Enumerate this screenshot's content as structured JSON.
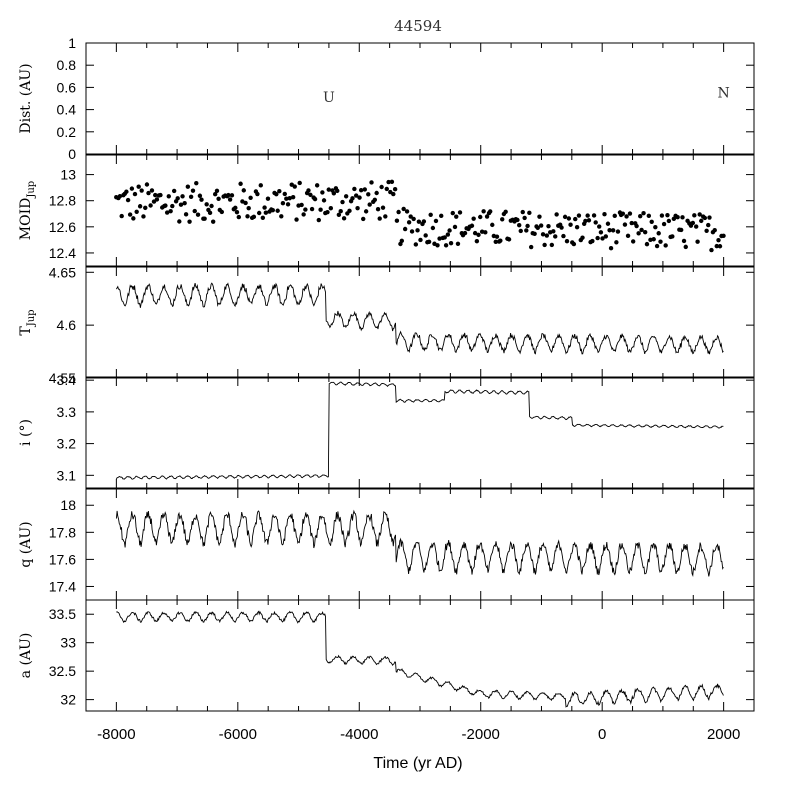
{
  "chart_data": {
    "type": "line",
    "title": "44594",
    "xlabel": "Time (yr AD)",
    "x_ticks": [
      -8000,
      -6000,
      -4000,
      -2000,
      0,
      2000
    ],
    "xlim": [
      -8500,
      2500
    ],
    "panels": [
      {
        "id": "dist",
        "ylabel": "Dist. (AU)",
        "ylim": [
          0,
          1
        ],
        "y_ticks": [
          0,
          0.2,
          0.4,
          0.6,
          0.8,
          1
        ],
        "y_tick_labels": [
          "0",
          "0.2",
          "0.4",
          "0.6",
          "0.8",
          "1"
        ],
        "kind": "markers",
        "markers": [
          {
            "label": "U",
            "x": -4500,
            "y": 0.47
          },
          {
            "label": "N",
            "x": 2000,
            "y": 0.51
          }
        ]
      },
      {
        "id": "moid",
        "ylabel": "MOID",
        "ylabel_sub": "Jup",
        "ylim": [
          12.3,
          13.15
        ],
        "y_ticks": [
          12.4,
          12.6,
          12.8,
          13
        ],
        "y_tick_labels": [
          "12.4",
          "12.6",
          "12.8",
          "13"
        ],
        "kind": "scatter",
        "x_range": [
          -8000,
          2000
        ],
        "segments": [
          {
            "from": -8000,
            "to": -3400,
            "y_start": 12.78,
            "y_end": 12.8,
            "amp": 0.15
          },
          {
            "from": -3400,
            "to": 2000,
            "y_start": 12.6,
            "y_end": 12.56,
            "amp": 0.14
          }
        ]
      },
      {
        "id": "tjup",
        "ylabel": "T",
        "ylabel_sub": "Jup",
        "ylim": [
          4.55,
          4.655
        ],
        "y_ticks": [
          4.55,
          4.6,
          4.65
        ],
        "y_tick_labels": [
          "4.55",
          "4.6",
          "4.65"
        ],
        "kind": "line",
        "x_range": [
          -8000,
          2000
        ],
        "period": 260,
        "segments": [
          {
            "from": -8000,
            "to": -4550,
            "y_start": 4.628,
            "y_end": 4.628,
            "amp": 0.012
          },
          {
            "from": -4550,
            "to": -3400,
            "y_start": 4.605,
            "y_end": 4.603,
            "amp": 0.009
          },
          {
            "from": -3400,
            "to": 2000,
            "y_start": 4.584,
            "y_end": 4.581,
            "amp": 0.01
          }
        ]
      },
      {
        "id": "incl",
        "ylabel": "i (°)",
        "ylim": [
          3.06,
          3.41
        ],
        "y_ticks": [
          3.1,
          3.2,
          3.3,
          3.4
        ],
        "y_tick_labels": [
          "3.1",
          "3.2",
          "3.3",
          "3.4"
        ],
        "kind": "line",
        "x_range": [
          -8000,
          2000
        ],
        "period": 140,
        "segments": [
          {
            "from": -8000,
            "to": -4500,
            "y_start": 3.092,
            "y_end": 3.098,
            "amp": 0.005
          },
          {
            "from": -4500,
            "to": -3400,
            "y_start": 3.39,
            "y_end": 3.385,
            "amp": 0.005
          },
          {
            "from": -3400,
            "to": -2600,
            "y_start": 3.335,
            "y_end": 3.335,
            "amp": 0.005
          },
          {
            "from": -2600,
            "to": -1200,
            "y_start": 3.365,
            "y_end": 3.36,
            "amp": 0.006
          },
          {
            "from": -1200,
            "to": -500,
            "y_start": 3.283,
            "y_end": 3.28,
            "amp": 0.005
          },
          {
            "from": -500,
            "to": 2000,
            "y_start": 3.258,
            "y_end": 3.252,
            "amp": 0.004
          }
        ]
      },
      {
        "id": "q",
        "ylabel": "q (AU)",
        "ylim": [
          17.3,
          18.12
        ],
        "y_ticks": [
          17.4,
          17.6,
          17.8,
          18
        ],
        "y_tick_labels": [
          "17.4",
          "17.6",
          "17.8",
          "18"
        ],
        "kind": "line",
        "x_range": [
          -8000,
          2000
        ],
        "period": 260,
        "segments": [
          {
            "from": -8000,
            "to": -3400,
            "y_start": 17.82,
            "y_end": 17.82,
            "amp": 0.14
          },
          {
            "from": -3400,
            "to": 2000,
            "y_start": 17.62,
            "y_end": 17.6,
            "amp": 0.13
          }
        ]
      },
      {
        "id": "a",
        "ylabel": "a (AU)",
        "ylim": [
          31.8,
          33.75
        ],
        "y_ticks": [
          32,
          32.5,
          33,
          33.5
        ],
        "y_tick_labels": [
          "32",
          "32.5",
          "33",
          "33.5"
        ],
        "kind": "line",
        "x_range": [
          -8000,
          2000
        ],
        "period": 260,
        "segments": [
          {
            "from": -8000,
            "to": -4550,
            "y_start": 33.45,
            "y_end": 33.45,
            "amp": 0.1
          },
          {
            "from": -4550,
            "to": -3400,
            "y_start": 32.7,
            "y_end": 32.68,
            "amp": 0.08
          },
          {
            "from": -3400,
            "to": -2000,
            "y_start": 32.5,
            "y_end": 32.1,
            "amp": 0.07
          },
          {
            "from": -2000,
            "to": -600,
            "y_start": 32.1,
            "y_end": 32.05,
            "amp": 0.08
          },
          {
            "from": -600,
            "to": 2000,
            "y_start": 32.0,
            "y_end": 32.15,
            "amp": 0.14
          }
        ]
      }
    ],
    "grid": false,
    "legend": "none"
  }
}
